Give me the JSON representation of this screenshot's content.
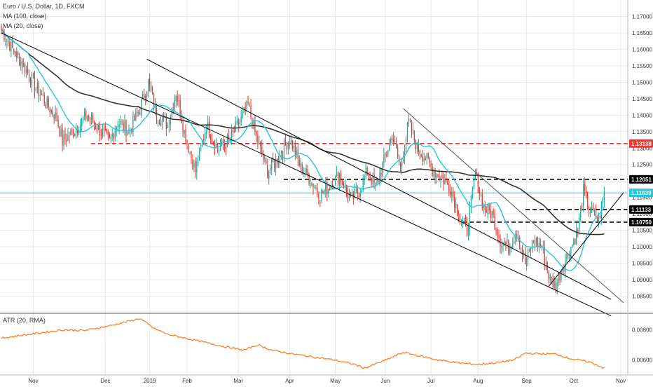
{
  "chart_data": {
    "type": "candlestick",
    "title": "Euro / U.S. Dollar, 1D, FXCM",
    "indicators": [
      "MA (100, close)",
      "MA (20, close)"
    ],
    "oscillator_label": "ATR (20, RMA)",
    "price_axis": {
      "range": [
        1.08,
        1.175
      ],
      "ticks": [
        "1.17000",
        "1.16500",
        "1.16000",
        "1.15500",
        "1.15000",
        "1.14500",
        "1.14000",
        "1.13500",
        "1.13000",
        "1.12500",
        "1.12000",
        "1.11500",
        "1.11000",
        "1.10500",
        "1.10000",
        "1.09500",
        "1.09000",
        "1.08500"
      ]
    },
    "atr_axis": {
      "range": [
        0.005,
        0.009
      ],
      "ticks": [
        "0.00800",
        "0.00600"
      ]
    },
    "x_ticks": [
      "Nov",
      "Dec",
      "2019",
      "Feb",
      "Mar",
      "Apr",
      "May",
      "Jun",
      "Jul",
      "Aug",
      "Sep",
      "Oct",
      "Nov"
    ],
    "level_badges": [
      {
        "label": "1.13138",
        "value": 1.13138,
        "color": "#e53935",
        "line": "dashed-red"
      },
      {
        "label": "1.12051",
        "value": 1.12051,
        "color": "#000000",
        "line": "dashed-black"
      },
      {
        "label": "1.11639",
        "value": 1.11639,
        "color": "#26c6da",
        "line": "solid-cyan"
      },
      {
        "label": "1.11133",
        "value": 1.11133,
        "color": "#000000",
        "line": "dashed-black"
      },
      {
        "label": "1.10750",
        "value": 1.1075,
        "color": "#000000",
        "line": "dashed-black"
      }
    ],
    "close_anchors": [
      [
        0,
        1.166
      ],
      [
        8,
        1.16
      ],
      [
        16,
        1.155
      ],
      [
        24,
        1.149
      ],
      [
        32,
        1.144
      ],
      [
        40,
        1.139
      ],
      [
        44,
        1.132
      ],
      [
        52,
        1.135
      ],
      [
        62,
        1.14
      ],
      [
        72,
        1.135
      ],
      [
        78,
        1.132
      ],
      [
        84,
        1.138
      ],
      [
        92,
        1.135
      ],
      [
        100,
        1.142
      ],
      [
        106,
        1.15
      ],
      [
        112,
        1.14
      ],
      [
        120,
        1.137
      ],
      [
        126,
        1.147
      ],
      [
        132,
        1.135
      ],
      [
        140,
        1.123
      ],
      [
        148,
        1.137
      ],
      [
        156,
        1.13
      ],
      [
        164,
        1.132
      ],
      [
        172,
        1.138
      ],
      [
        178,
        1.143
      ],
      [
        184,
        1.133
      ],
      [
        192,
        1.123
      ],
      [
        200,
        1.127
      ],
      [
        208,
        1.133
      ],
      [
        216,
        1.124
      ],
      [
        222,
        1.121
      ],
      [
        230,
        1.116
      ],
      [
        236,
        1.118
      ],
      [
        244,
        1.122
      ],
      [
        252,
        1.114
      ],
      [
        258,
        1.117
      ],
      [
        264,
        1.123
      ],
      [
        270,
        1.118
      ],
      [
        276,
        1.126
      ],
      [
        282,
        1.134
      ],
      [
        288,
        1.124
      ],
      [
        294,
        1.138
      ],
      [
        300,
        1.13
      ],
      [
        306,
        1.127
      ],
      [
        312,
        1.123
      ],
      [
        318,
        1.121
      ],
      [
        324,
        1.118
      ],
      [
        330,
        1.11
      ],
      [
        336,
        1.105
      ],
      [
        342,
        1.122
      ],
      [
        348,
        1.112
      ],
      [
        354,
        1.11
      ],
      [
        360,
        1.102
      ],
      [
        366,
        1.1
      ],
      [
        372,
        1.105
      ],
      [
        378,
        1.095
      ],
      [
        384,
        1.102
      ],
      [
        390,
        1.1
      ],
      [
        396,
        1.09
      ],
      [
        400,
        1.088
      ],
      [
        404,
        1.093
      ],
      [
        410,
        1.099
      ],
      [
        416,
        1.105
      ],
      [
        420,
        1.117
      ],
      [
        424,
        1.112
      ],
      [
        428,
        1.11
      ],
      [
        431,
        1.108
      ],
      [
        435,
        1.1164
      ]
    ],
    "atr_anchors": [
      [
        0,
        0.00745
      ],
      [
        20,
        0.0077
      ],
      [
        45,
        0.008
      ],
      [
        60,
        0.00795
      ],
      [
        80,
        0.0083
      ],
      [
        100,
        0.00875
      ],
      [
        110,
        0.0081
      ],
      [
        120,
        0.0077
      ],
      [
        140,
        0.0073
      ],
      [
        160,
        0.0069
      ],
      [
        175,
        0.00665
      ],
      [
        185,
        0.007
      ],
      [
        195,
        0.00665
      ],
      [
        210,
        0.0064
      ],
      [
        225,
        0.0062
      ],
      [
        240,
        0.006
      ],
      [
        255,
        0.0057
      ],
      [
        262,
        0.00545
      ],
      [
        275,
        0.0059
      ],
      [
        290,
        0.0065
      ],
      [
        300,
        0.0063
      ],
      [
        315,
        0.006
      ],
      [
        330,
        0.0058
      ],
      [
        345,
        0.0057
      ],
      [
        360,
        0.00585
      ],
      [
        370,
        0.006
      ],
      [
        378,
        0.00645
      ],
      [
        390,
        0.0064
      ],
      [
        400,
        0.0064
      ],
      [
        410,
        0.0061
      ],
      [
        425,
        0.00585
      ],
      [
        435,
        0.00545
      ]
    ],
    "trendlines": [
      {
        "from": [
          105,
          1.157
        ],
        "to": [
          440,
          1.084
        ],
        "color": "#000000"
      },
      {
        "from": [
          0,
          1.165
        ],
        "to": [
          440,
          1.079
        ],
        "color": "#000000"
      },
      {
        "from": [
          290,
          1.142
        ],
        "to": [
          449,
          1.083
        ],
        "color": "#555555"
      },
      {
        "from": [
          395,
          1.088
        ],
        "to": [
          449,
          1.1165
        ],
        "color": "#000000"
      }
    ],
    "colors": {
      "up": "#26a69a",
      "down": "#e53935",
      "ma100": "#333333",
      "ma20": "#26c6da",
      "atr": "#ff7f27",
      "grid": "#e8e8e8"
    }
  }
}
